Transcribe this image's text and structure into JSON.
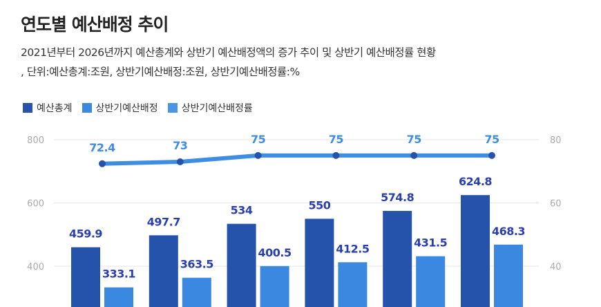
{
  "title": "연도별 예산배정 추이",
  "subtitle_lines": [
    "2021년부터 2026년까지 예산총계와 상반기 예산배정액의 증가 추이 및 상반기 예산배정률 현황",
    ", 단위:예산총계:조원, 상반기예산배정:조원, 상반기예산배정률:%"
  ],
  "chart_data": {
    "type": "bar",
    "series": [
      {
        "name": "예산총계",
        "type": "bar",
        "axis": "left",
        "color": "#2553ab",
        "label_color": "#2a3fae",
        "values": [
          459.9,
          497.7,
          534,
          550,
          574.8,
          624.8
        ]
      },
      {
        "name": "상반기예산배정",
        "type": "bar",
        "axis": "left",
        "color": "#3a88e0",
        "label_color": "#2a3fae",
        "values": [
          333.1,
          363.5,
          400.5,
          412.5,
          431.5,
          468.3
        ]
      },
      {
        "name": "상반기예산배정률",
        "type": "line",
        "axis": "right",
        "color": "#3f8de3",
        "marker_color": "#2553ab",
        "label_color": "#3f8de3",
        "values": [
          72.4,
          73,
          75,
          75,
          75,
          75
        ]
      }
    ],
    "left_axis": {
      "ticks": [
        "800",
        "600",
        "400"
      ],
      "range_visible": [
        400,
        800
      ]
    },
    "right_axis": {
      "ticks": [
        "80",
        "60",
        "40"
      ],
      "range_visible": [
        40,
        80
      ]
    },
    "grid": true,
    "legend": "top-left"
  }
}
